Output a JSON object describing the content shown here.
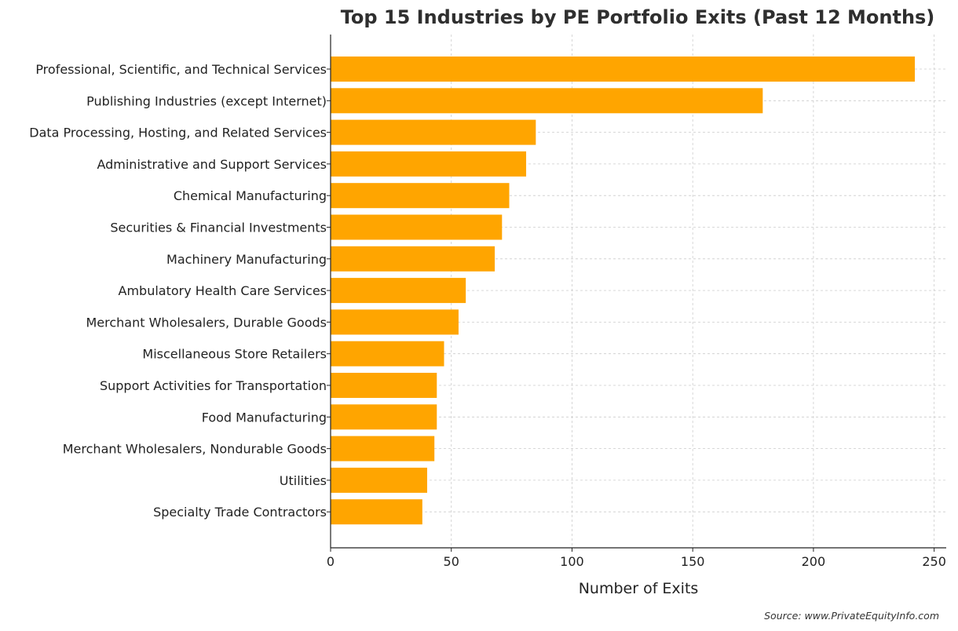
{
  "chart_data": {
    "type": "bar",
    "orientation": "horizontal",
    "title": "Top 15 Industries by PE Portfolio Exits (Past 12 Months)",
    "xlabel": "Number of Exits",
    "ylabel": "",
    "xlim": [
      0,
      255
    ],
    "xticks": [
      0,
      50,
      100,
      150,
      200,
      250
    ],
    "grid": true,
    "bar_color": "#FFA500",
    "categories": [
      "Professional, Scientific, and Technical Services",
      "Publishing Industries (except Internet)",
      "Data Processing, Hosting, and Related Services",
      "Administrative and Support Services",
      "Chemical Manufacturing",
      "Securities & Financial Investments",
      "Machinery Manufacturing",
      "Ambulatory Health Care Services",
      "Merchant Wholesalers, Durable Goods",
      "Miscellaneous Store Retailers",
      "Support Activities for Transportation",
      "Food Manufacturing",
      "Merchant Wholesalers, Nondurable Goods",
      "Utilities",
      "Specialty Trade Contractors"
    ],
    "values": [
      242,
      179,
      85,
      81,
      74,
      71,
      68,
      56,
      53,
      47,
      44,
      44,
      43,
      40,
      38
    ],
    "source": "Source: www.PrivateEquityInfo.com"
  }
}
